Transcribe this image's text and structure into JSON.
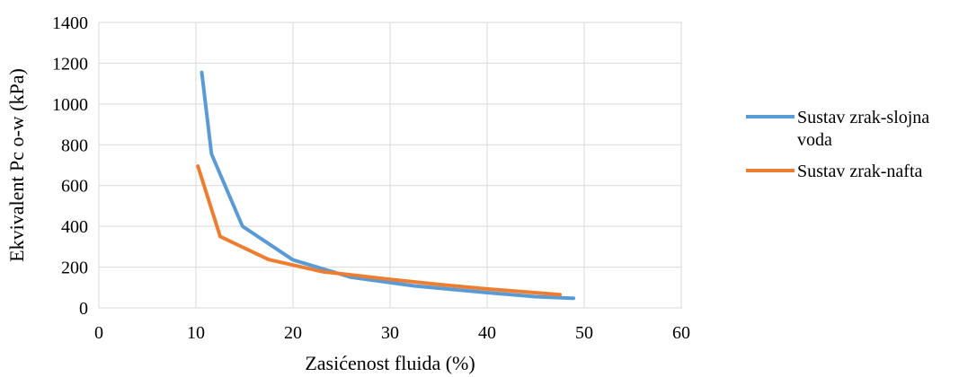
{
  "chart_data": {
    "type": "line",
    "xlabel": "Zasićenost fluida (%)",
    "ylabel": "Ekvivalent Pc o-w (kPa)",
    "xlim": [
      0,
      60
    ],
    "ylim": [
      0,
      1400
    ],
    "x_ticks": [
      0,
      10,
      20,
      30,
      40,
      50,
      60
    ],
    "y_ticks": [
      0,
      200,
      400,
      600,
      800,
      1000,
      1200,
      1400
    ],
    "grid": true,
    "legend_position": "right",
    "series": [
      {
        "name": "Sustav zrak-slojna voda",
        "legend_lines": [
          "Sustav zrak-slojna",
          "voda"
        ],
        "color": "#5B9BD5",
        "points": [
          {
            "x": 10.6,
            "y": 1155
          },
          {
            "x": 11.6,
            "y": 755
          },
          {
            "x": 14.8,
            "y": 400
          },
          {
            "x": 20.0,
            "y": 235
          },
          {
            "x": 26.0,
            "y": 150
          },
          {
            "x": 32.5,
            "y": 108
          },
          {
            "x": 40.0,
            "y": 75
          },
          {
            "x": 45.0,
            "y": 55
          },
          {
            "x": 48.9,
            "y": 47
          }
        ]
      },
      {
        "name": "Sustav zrak-nafta",
        "legend_lines": [
          "Sustav zrak-nafta"
        ],
        "color": "#ED7D31",
        "points": [
          {
            "x": 10.2,
            "y": 695
          },
          {
            "x": 12.5,
            "y": 350
          },
          {
            "x": 17.5,
            "y": 237
          },
          {
            "x": 23.0,
            "y": 178
          },
          {
            "x": 30.0,
            "y": 140
          },
          {
            "x": 35.0,
            "y": 115
          },
          {
            "x": 40.0,
            "y": 93
          },
          {
            "x": 47.5,
            "y": 65
          }
        ]
      }
    ]
  }
}
